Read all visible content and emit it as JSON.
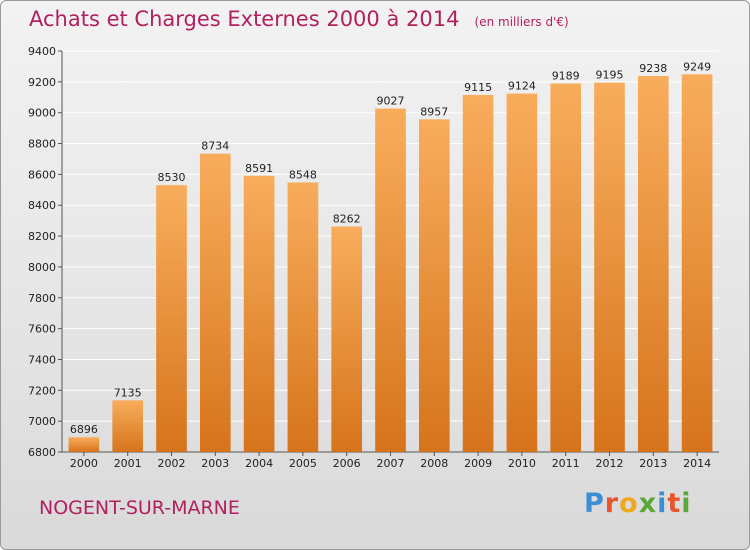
{
  "title": {
    "main": "Achats et Charges Externes 2000 à 2014",
    "unit": "(en milliers d'€)"
  },
  "location": "NOGENT-SUR-MARNE",
  "logo": {
    "letters": [
      "P",
      "r",
      "o",
      "x",
      "i",
      "t",
      "i"
    ],
    "colors": [
      "#3a8fd4",
      "#e8552a",
      "#f0a81c",
      "#5aa73a",
      "#3a8fd4",
      "#e8552a",
      "#5aa73a"
    ]
  },
  "colors": {
    "bar_top": "#f8ad5c",
    "bar_bottom": "#d6741c",
    "grid": "#ffffff"
  },
  "chart_data": {
    "type": "bar",
    "title": "Achats et Charges Externes 2000 à 2014",
    "subtitle": "(en milliers d'€)",
    "categories": [
      "2000",
      "2001",
      "2002",
      "2003",
      "2004",
      "2005",
      "2006",
      "2007",
      "2008",
      "2009",
      "2010",
      "2011",
      "2012",
      "2013",
      "2014"
    ],
    "values": [
      6896,
      7135,
      8530,
      8734,
      8591,
      8548,
      8262,
      9027,
      8957,
      9115,
      9124,
      9189,
      9195,
      9238,
      9249
    ],
    "value_labels": [
      "6896",
      "7135",
      "8530",
      "8734",
      "8591",
      "8548",
      "8262",
      "9027",
      "8957",
      "9115",
      "9124",
      "9189",
      "9195",
      "9238",
      "9249"
    ],
    "ylim": [
      6800,
      9400
    ],
    "yticks": [
      6800,
      7000,
      7200,
      7400,
      7600,
      7800,
      8000,
      8200,
      8400,
      8600,
      8800,
      9000,
      9200,
      9400
    ],
    "ytick_labels": [
      "6800",
      "7000",
      "7200",
      "7400",
      "7600",
      "7800",
      "8000",
      "8200",
      "8400",
      "8600",
      "8800",
      "9000",
      "9200",
      "9400"
    ],
    "grid": true,
    "xlabel": "",
    "ylabel": ""
  }
}
